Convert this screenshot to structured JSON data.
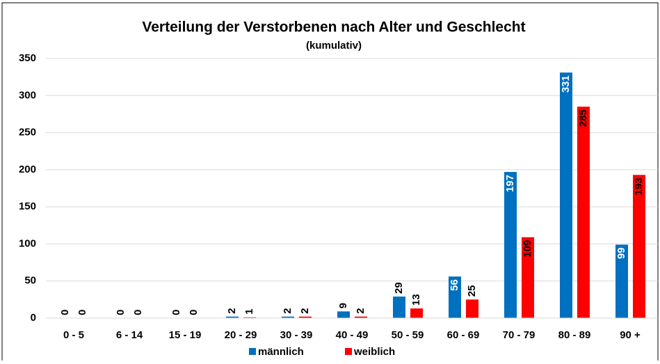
{
  "chart_data": {
    "type": "bar",
    "title": "Verteilung der Verstorbenen nach Alter und Geschlecht",
    "subtitle": "(kumulativ)",
    "categories": [
      "0 - 5",
      "6 - 14",
      "15 - 19",
      "20 - 29",
      "30 - 39",
      "40 - 49",
      "50 - 59",
      "60 - 69",
      "70 - 79",
      "80 - 89",
      "90 +"
    ],
    "series": [
      {
        "name": "männlich",
        "color": "#0070c0",
        "values": [
          0,
          0,
          0,
          2,
          2,
          9,
          29,
          56,
          197,
          331,
          99
        ]
      },
      {
        "name": "weiblich",
        "color": "#ff0000",
        "values": [
          0,
          0,
          0,
          1,
          2,
          2,
          13,
          25,
          109,
          285,
          193
        ]
      }
    ],
    "ylim": [
      0,
      350
    ],
    "yticks": [
      0,
      50,
      100,
      150,
      200,
      250,
      300,
      350
    ],
    "grid": true,
    "legend": "bottom"
  }
}
